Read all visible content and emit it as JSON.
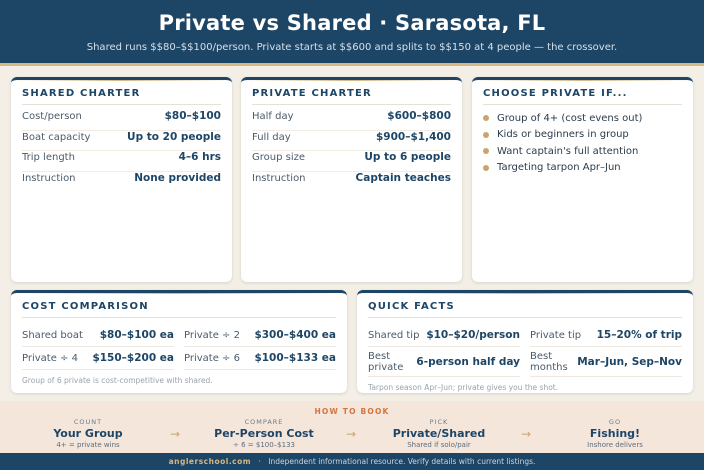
{
  "header": {
    "title": "Private vs Shared · Sarasota, FL",
    "subtitle": "Shared runs $$80–$$100/person. Private starts at $$600 and splits to $$150 at 4 people — the crossover."
  },
  "shared": {
    "title": "SHARED CHARTER",
    "rows": [
      {
        "k": "Cost/person",
        "v": "$80–$100"
      },
      {
        "k": "Boat capacity",
        "v": "Up to 20 people"
      },
      {
        "k": "Trip length",
        "v": "4–6 hrs"
      },
      {
        "k": "Instruction",
        "v": "None provided"
      }
    ]
  },
  "private": {
    "title": "PRIVATE CHARTER",
    "rows": [
      {
        "k": "Half day",
        "v": "$600–$800"
      },
      {
        "k": "Full day",
        "v": "$900–$1,400"
      },
      {
        "k": "Group size",
        "v": "Up to 6 people"
      },
      {
        "k": "Instruction",
        "v": "Captain teaches"
      }
    ]
  },
  "choose": {
    "title": "CHOOSE PRIVATE IF...",
    "items": [
      "Group of 4+ (cost evens out)",
      "Kids or beginners in group",
      "Want captain's full attention",
      "Targeting tarpon Apr–Jun"
    ]
  },
  "cost": {
    "title": "COST COMPARISON",
    "cells": [
      {
        "k": "Shared boat",
        "v": "$80–$100 ea"
      },
      {
        "k": "Private ÷ 2",
        "v": "$300–$400 ea"
      },
      {
        "k": "Private ÷ 4",
        "v": "$150–$200 ea"
      },
      {
        "k": "Private ÷ 6",
        "v": "$100–$133 ea"
      }
    ],
    "note": "Group of 6 private is cost-competitive with shared."
  },
  "facts": {
    "title": "QUICK FACTS",
    "cells": [
      {
        "k": "Shared tip",
        "v": "$10–$20/person"
      },
      {
        "k": "Private tip",
        "v": "15–20% of trip"
      },
      {
        "k": "Best private",
        "v": "6-person half day"
      },
      {
        "k": "Best months",
        "v": "Mar–Jun, Sep–Nov"
      }
    ],
    "note": "Tarpon season Apr–Jun; private gives you the shot."
  },
  "how": {
    "title": "HOW TO BOOK",
    "steps": [
      {
        "cap": "COUNT",
        "main": "Your Group",
        "small": "4+ = private wins"
      },
      {
        "cap": "COMPARE",
        "main": "Per-Person Cost",
        "small": "÷ 6 = $100–$133"
      },
      {
        "cap": "PICK",
        "main": "Private/Shared",
        "small": "Shared if solo/pair"
      },
      {
        "cap": "GO",
        "main": "Fishing!",
        "small": "Inshore delivers"
      }
    ],
    "arrow": "→"
  },
  "footer": {
    "brand": "anglerschool.com",
    "sep": "·",
    "text": "Independent informational resource. Verify details with current listings."
  },
  "colors": {
    "navy": "#1d4566",
    "gold": "#d6b883",
    "accent": "#d3753e",
    "bullet": "#c9a56a"
  }
}
